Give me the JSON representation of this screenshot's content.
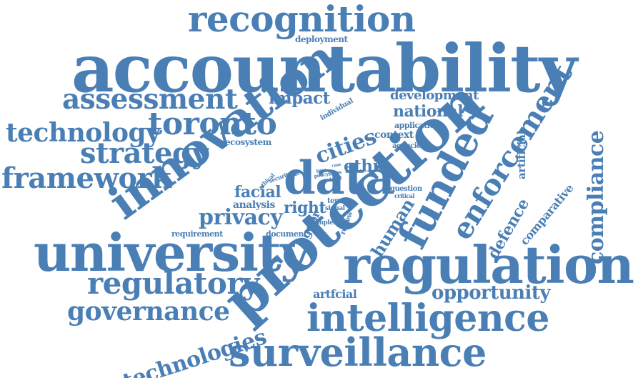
{
  "colors": {
    "word": "#4a7fb5",
    "background": "#ffffff"
  },
  "words": {
    "recognition": "recognition",
    "accountability": "accountability",
    "deployment": "deployment",
    "assessment": "assessment",
    "impact": "impact",
    "development": "development",
    "national": "national",
    "individual": "individual",
    "technology": "technology",
    "toronto": "toronto",
    "innovation": "innovation",
    "protection": "protection",
    "application": "application",
    "context": "context",
    "agencies": "agencies",
    "ecosystem": "ecosystem",
    "strategy": "strategy",
    "cities": "cities",
    "artificial_v": "artificial",
    "enforcement": "enforcement",
    "compliance": "compliance",
    "framework": "framework",
    "data": "data",
    "ethic": "ethic",
    "ethical": "ethical",
    "security": "security",
    "space": "space",
    "policy": "policy",
    "true": "true",
    "focus": "focus",
    "legal": "legal",
    "case": "case",
    "trust": "trust",
    "funded": "funded",
    "comparative": "comparative",
    "facial": "facial",
    "question": "question",
    "critical": "critical",
    "analysis": "analysis",
    "right": "right",
    "term": "term",
    "signal": "signal",
    "complex": "complex",
    "review": "review",
    "privacy": "privacy",
    "gdpr": "gdpr",
    "human": "human",
    "defence": "defence",
    "requirement": "requirement",
    "document": "document",
    "university": "university",
    "regulation": "regulation",
    "regulatory": "regulatory",
    "artfcial": "artfcial",
    "opportunity": "opportunity",
    "governance": "governance",
    "intelligence": "intelligence",
    "technologies": "technologies",
    "surveillance": "surveillance"
  }
}
